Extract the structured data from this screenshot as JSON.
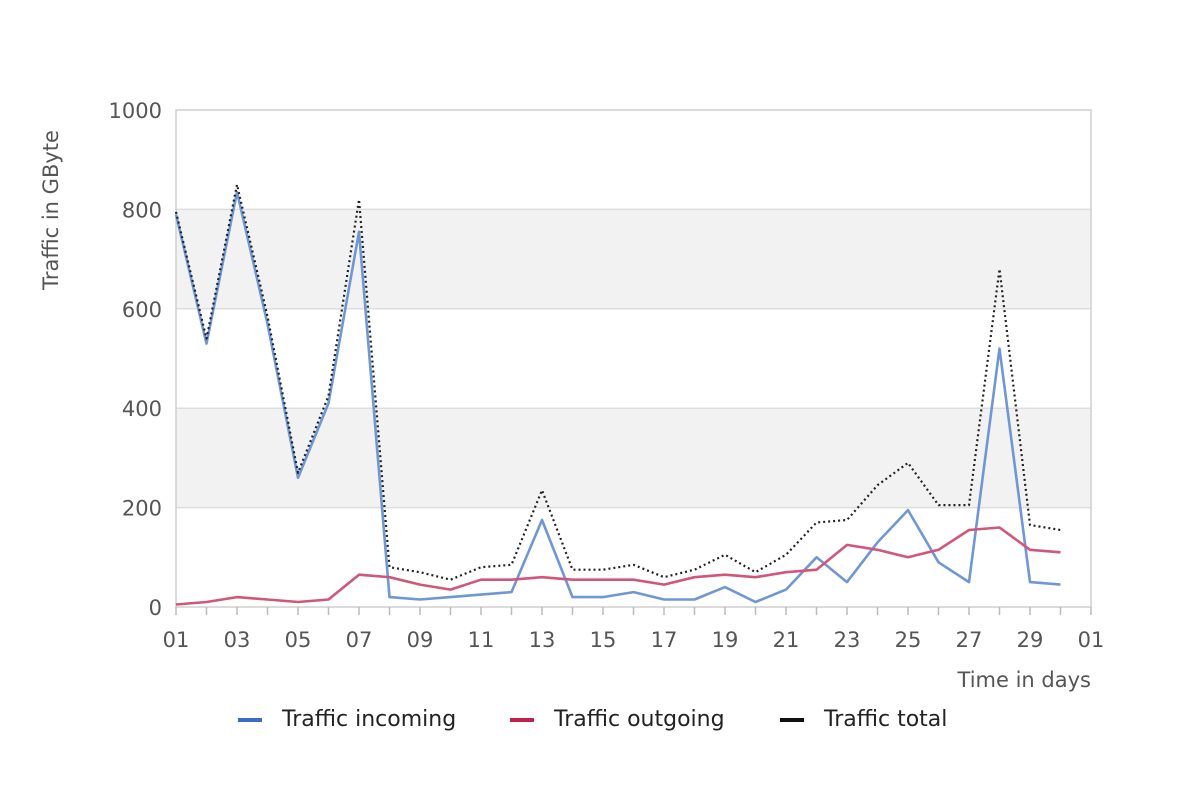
{
  "chart_data": {
    "type": "line",
    "xlabel": "Time in days",
    "ylabel": "Traffic in GByte",
    "ylim": [
      0,
      1000
    ],
    "yticks": [
      "0",
      "200",
      "400",
      "600",
      "800",
      "1000"
    ],
    "xticks": [
      "01",
      "03",
      "05",
      "07",
      "09",
      "11",
      "13",
      "15",
      "17",
      "19",
      "21",
      "23",
      "25",
      "27",
      "29",
      "01"
    ],
    "grid": "horizontal bands",
    "legend_position": "bottom",
    "days": [
      1,
      2,
      3,
      4,
      5,
      6,
      7,
      8,
      9,
      10,
      11,
      12,
      13,
      14,
      15,
      16,
      17,
      18,
      19,
      20,
      21,
      22,
      23,
      24,
      25,
      26,
      27,
      28,
      29,
      30
    ],
    "series": [
      {
        "name": "Traffic incoming",
        "color": "#6f97d3",
        "legend_color": "#3a6cc8",
        "style": "solid",
        "values": [
          790,
          530,
          835,
          570,
          260,
          410,
          755,
          20,
          15,
          20,
          25,
          30,
          175,
          20,
          20,
          30,
          15,
          15,
          40,
          10,
          35,
          100,
          50,
          130,
          195,
          90,
          50,
          520,
          50,
          45
        ]
      },
      {
        "name": "Traffic outgoing",
        "color": "#d2557a",
        "legend_color": "#c41f4f",
        "style": "solid",
        "values": [
          5,
          10,
          20,
          15,
          10,
          15,
          65,
          60,
          45,
          35,
          55,
          55,
          60,
          55,
          55,
          55,
          45,
          60,
          65,
          60,
          70,
          75,
          125,
          115,
          100,
          115,
          155,
          160,
          115,
          110
        ]
      },
      {
        "name": "Traffic total",
        "color": "#222222",
        "legend_color": "#111111",
        "style": "dotted",
        "values": [
          795,
          540,
          850,
          585,
          270,
          425,
          820,
          80,
          70,
          55,
          80,
          85,
          235,
          75,
          75,
          85,
          60,
          75,
          105,
          70,
          105,
          170,
          175,
          245,
          290,
          205,
          205,
          680,
          165,
          155
        ]
      }
    ]
  }
}
